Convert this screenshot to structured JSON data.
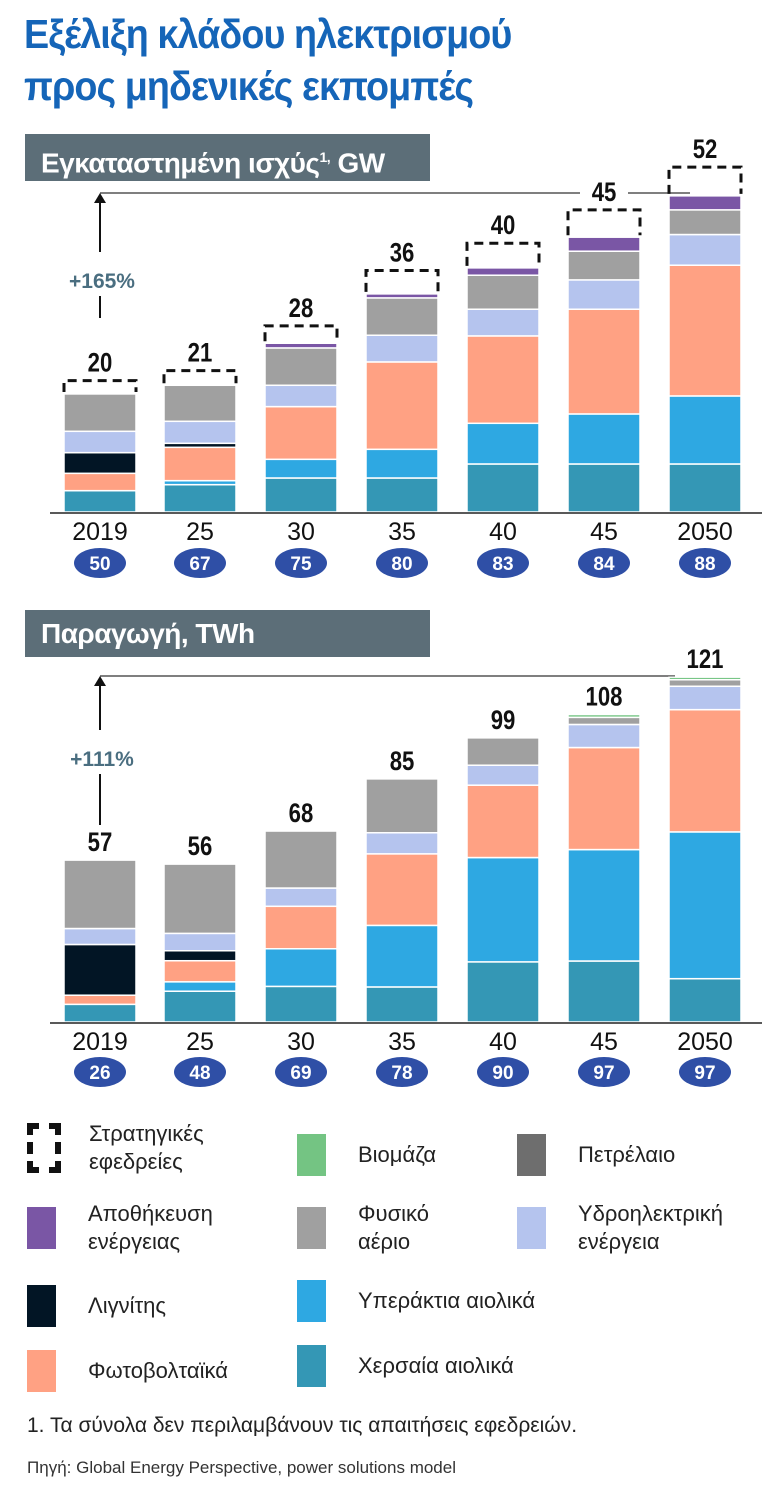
{
  "title_line1": "Εξέλιξη κλάδου ηλεκτρισμού",
  "title_line2": "προς μηδενικές εκπομπές",
  "colors": {
    "reserve": "#111111",
    "biomass": "#74c483",
    "oil": "#6e6e6e",
    "storage": "#7a56a5",
    "gas": "#a0a0a0",
    "hydro": "#b5c4ee",
    "lignite": "#021525",
    "offshore": "#2ea8e2",
    "solar": "#ffa183",
    "onshore": "#3497b5",
    "badge": "#2f4fa6",
    "header": "#5c6e78",
    "growth": "#4a6e80"
  },
  "legend": [
    {
      "key": "reserve",
      "label": "Στρατηγικές\nεφεδρείες",
      "icon": "dashed-box"
    },
    {
      "key": "biomass",
      "label": "Βιομάζα"
    },
    {
      "key": "oil",
      "label": "Πετρέλαιο"
    },
    {
      "key": "storage",
      "label": "Αποθήκευση\nενέργειας"
    },
    {
      "key": "gas",
      "label": "Φυσικό\nαέριο"
    },
    {
      "key": "hydro",
      "label": "Υδροηλεκτρική\nενέργεια"
    },
    {
      "key": "lignite",
      "label": "Λιγνίτης"
    },
    {
      "key": "offshore",
      "label": "Υπεράκτια αιολικά"
    },
    {
      "key": "solar",
      "label": "Φωτοβολταϊκά"
    },
    {
      "key": "onshore",
      "label": "Χερσαία αιολικά"
    }
  ],
  "footnote": "1. Τα σύνολα δεν περιλαμβάνουν τις απαιτήσεις εφεδρειών.",
  "source": "Πηγή: Global Energy Perspective, power solutions model",
  "chart_data": [
    {
      "type": "bar",
      "stacked": true,
      "title": "Εγκαταστημένη ισχύς",
      "title_sup": "1,",
      "unit": "GW",
      "categories": [
        "2019",
        "25",
        "30",
        "35",
        "40",
        "45",
        "2050"
      ],
      "totals": [
        20,
        21,
        28,
        36,
        40,
        45,
        52
      ],
      "badges": [
        50,
        67,
        75,
        80,
        83,
        84,
        88
      ],
      "growth_label": "+165%",
      "series": [
        {
          "key": "onshore",
          "values": [
            3.2,
            4.1,
            5.1,
            5.1,
            7.2,
            7.2,
            7.2
          ]
        },
        {
          "key": "offshore",
          "values": [
            0,
            0.6,
            2.8,
            4.3,
            6.1,
            7.5,
            10.2
          ]
        },
        {
          "key": "solar",
          "values": [
            2.6,
            5.0,
            7.9,
            13.1,
            13.1,
            15.7,
            19.6
          ]
        },
        {
          "key": "lignite",
          "values": [
            3.1,
            0.6,
            0,
            0,
            0,
            0,
            0
          ]
        },
        {
          "key": "hydro",
          "values": [
            3.2,
            3.3,
            3.2,
            4.0,
            4.0,
            4.4,
            4.6
          ]
        },
        {
          "key": "gas",
          "values": [
            5.6,
            5.4,
            5.6,
            5.6,
            5.1,
            4.3,
            3.7
          ]
        },
        {
          "key": "storage",
          "values": [
            0,
            0,
            0.7,
            0.6,
            1.1,
            2.1,
            2.1
          ]
        },
        {
          "key": "reserve",
          "values": [
            2.0,
            2.2,
            2.6,
            3.5,
            3.7,
            4.1,
            4.3
          ]
        }
      ]
    },
    {
      "type": "bar",
      "stacked": true,
      "title": "Παραγωγή, TWh",
      "unit": "TWh",
      "categories": [
        "2019",
        "25",
        "30",
        "35",
        "40",
        "45",
        "2050"
      ],
      "totals": [
        57,
        56,
        68,
        85,
        99,
        108,
        121
      ],
      "badges": [
        26,
        48,
        69,
        78,
        90,
        97,
        97
      ],
      "growth_label": "+111%",
      "series": [
        {
          "key": "onshore",
          "values": [
            6.2,
            10.8,
            12.5,
            12.3,
            21.1,
            21.4,
            15.2
          ]
        },
        {
          "key": "offshore",
          "values": [
            0,
            3.3,
            13.2,
            21.6,
            36.6,
            39.1,
            51.5
          ]
        },
        {
          "key": "solar",
          "values": [
            3.2,
            7.4,
            14.9,
            25.1,
            25.4,
            35.8,
            42.9
          ]
        },
        {
          "key": "lignite",
          "values": [
            17.8,
            3.5,
            0,
            0,
            0,
            0,
            0
          ]
        },
        {
          "key": "hydro",
          "values": [
            5.6,
            6.1,
            6.4,
            7.4,
            7.0,
            8.1,
            8.2
          ]
        },
        {
          "key": "gas",
          "values": [
            24.0,
            24.3,
            20.0,
            18.9,
            9.6,
            2.5,
            2.3
          ]
        },
        {
          "key": "biomass",
          "values": [
            0,
            0,
            0,
            0,
            0,
            1.0,
            0.9
          ]
        }
      ]
    }
  ]
}
